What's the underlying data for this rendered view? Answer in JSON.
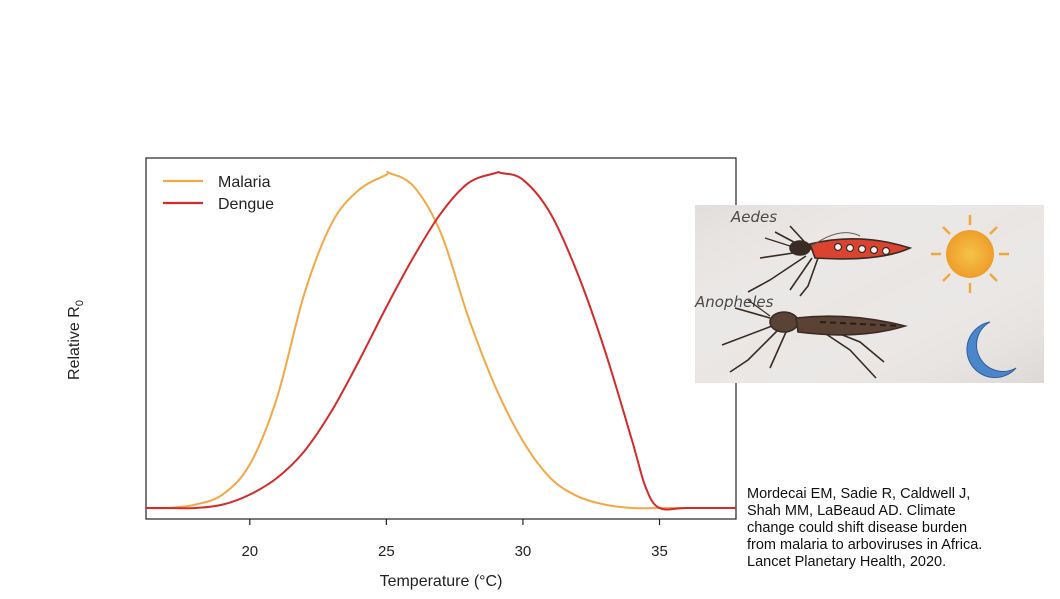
{
  "chart_data": {
    "type": "line",
    "xlabel": "Temperature (°C)",
    "ylabel": "Relative R",
    "ylabel_subscript": "0",
    "xlim": [
      16.2,
      37.8
    ],
    "ylim": [
      0,
      1
    ],
    "x_ticks": [
      20,
      25,
      30,
      35
    ],
    "y_ticks": [],
    "grid": false,
    "legend": "top-left",
    "series": [
      {
        "name": "Malaria",
        "color": "#f4a742",
        "x": [
          16.2,
          17,
          18,
          19,
          20,
          21,
          22,
          23,
          24,
          25,
          25.1,
          26,
          27,
          28,
          29,
          30,
          31,
          32,
          33,
          34,
          35,
          36,
          37.8
        ],
        "y": [
          0.0,
          0.0,
          0.01,
          0.04,
          0.13,
          0.33,
          0.64,
          0.85,
          0.95,
          0.995,
          1.0,
          0.96,
          0.82,
          0.57,
          0.36,
          0.2,
          0.09,
          0.035,
          0.01,
          0.0,
          0.0,
          0.0,
          0.0
        ]
      },
      {
        "name": "Dengue",
        "color": "#d42a2a",
        "x": [
          16.2,
          17,
          18,
          19,
          20,
          21,
          22,
          23,
          24,
          25,
          26,
          27,
          28,
          29,
          29.2,
          30,
          31,
          32,
          33,
          34,
          34.5,
          35,
          36,
          37.8
        ],
        "y": [
          0.0,
          0.0,
          0.0,
          0.01,
          0.04,
          0.09,
          0.17,
          0.29,
          0.44,
          0.6,
          0.75,
          0.88,
          0.97,
          1.0,
          1.0,
          0.98,
          0.88,
          0.7,
          0.47,
          0.2,
          0.06,
          0.0,
          0.0,
          0.0
        ]
      }
    ]
  },
  "sketch": {
    "label_top": "Aedes",
    "label_bottom": "Anopheles",
    "icons": [
      "aedes-mosquito-icon",
      "anopheles-mosquito-icon",
      "sun-icon",
      "moon-icon"
    ],
    "colors": {
      "paper": "#e9e6e4",
      "sun": "#f3b23a",
      "moon": "#4a86c9",
      "aedes_body": "#d9432f",
      "ink": "#3a2c24"
    }
  },
  "citation": [
    "Mordecai EM, Sadie R, Caldwell J,",
    "Shah MM, LaBeaud AD. Climate",
    "change could shift disease burden",
    "from malaria to arboviruses in Africa.",
    "Lancet Planetary Health, 2020."
  ]
}
